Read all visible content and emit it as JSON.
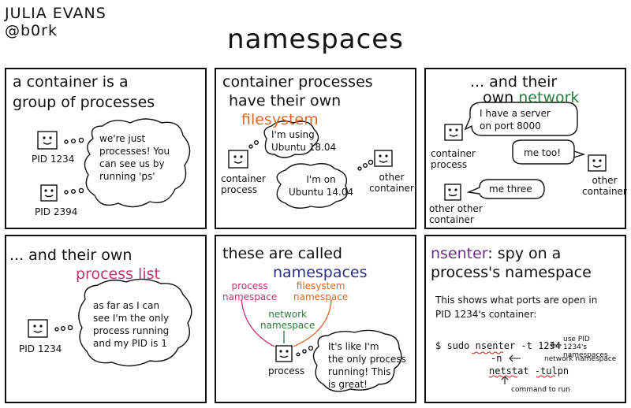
{
  "author": {
    "name": "JULIA EVANS",
    "handle": "@b0rk"
  },
  "title": "namespaces",
  "panel1": {
    "heading_line1": "a container is a",
    "heading_line2": "group of processes",
    "bubble": [
      "we're just",
      "processes! You",
      "can see us by",
      "running 'ps'"
    ],
    "label1": "PID 1234",
    "label2": "PID 2394"
  },
  "panel2": {
    "heading_line1": "container processes",
    "heading_line2": "have their own",
    "heading_highlight": "filesystem",
    "bubble1": [
      "I'm using",
      "Ubuntu 18.04"
    ],
    "bubble2": [
      "I'm on",
      "Ubuntu 14.04"
    ],
    "label1": [
      "container",
      "process"
    ],
    "label2": [
      "other",
      "container"
    ]
  },
  "panel3": {
    "heading_line1": "... and their",
    "heading_line2_pre": "own",
    "heading_highlight": "network",
    "bubble1": [
      "I have a server",
      "on port 8000"
    ],
    "bubble2": "me too!",
    "bubble3": "me three",
    "label1": [
      "container",
      "process"
    ],
    "label2": [
      "other",
      "container"
    ],
    "label3": [
      "other other",
      "container"
    ]
  },
  "panel4": {
    "heading_line1": "... and their own",
    "heading_highlight": "process list",
    "bubble": [
      "as far as I can",
      "see I'm the only",
      "process running",
      "and my PID is 1"
    ],
    "label": "PID 1234"
  },
  "panel5": {
    "heading_line1": "these are called",
    "heading_highlight": "namespaces",
    "ns_process": [
      "process",
      "namespace"
    ],
    "ns_filesystem": [
      "filesystem",
      "namespace"
    ],
    "ns_network": [
      "network",
      "namespace"
    ],
    "label": "process",
    "bubble": [
      "It's like I'm",
      "the only process",
      "running! This",
      "is great!"
    ]
  },
  "panel6": {
    "heading_highlight": "nsenter",
    "heading_line1_rest": ": spy on a",
    "heading_line2": "process's namespace",
    "desc_line1": "This shows what ports are open in",
    "desc_line2": "PID 1234's container:",
    "cmd_prefix": "$ sudo",
    "cmd_nsenter": "nsenter",
    "cmd_t": "-t 1234",
    "cmd_n": "-n",
    "cmd_netstat": "netstat",
    "cmd_tulpn": "-tulpn",
    "note_pid": [
      "use PID",
      "1234's",
      "namespaces"
    ],
    "note_network": "network namespace",
    "note_command": "command to run"
  },
  "colors": {
    "orange": "#d5682b",
    "green": "#2b7a3e",
    "pink": "#c03572",
    "navy": "#2b2f8a",
    "purple": "#6a2f88"
  }
}
